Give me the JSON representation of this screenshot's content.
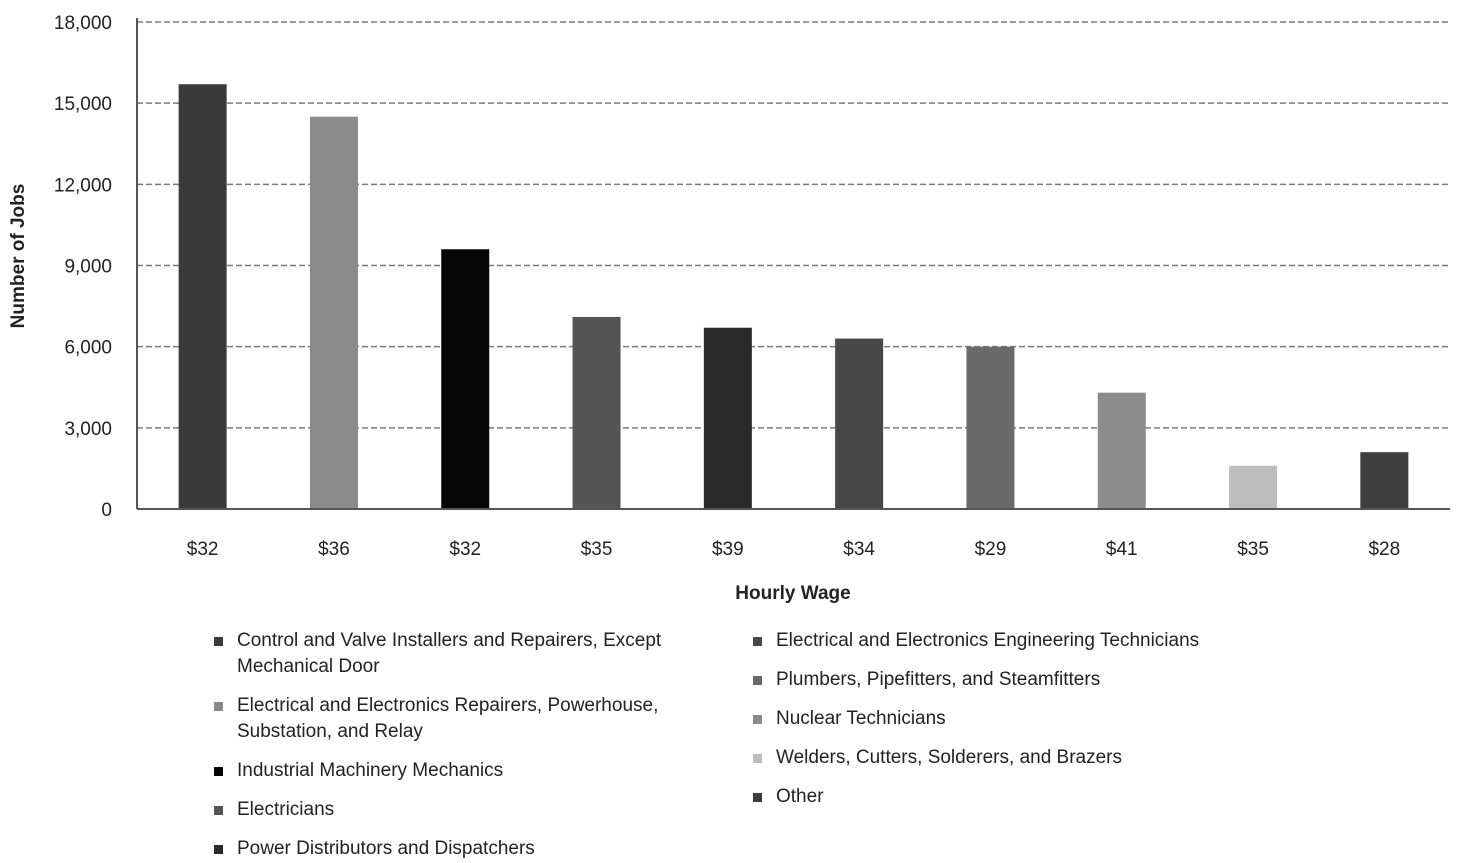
{
  "chart_data": {
    "type": "bar",
    "title": "",
    "xlabel": "Hourly Wage",
    "ylabel": "Number of Jobs",
    "ylim": [
      0,
      18000
    ],
    "yticks": [
      0,
      3000,
      6000,
      9000,
      12000,
      15000,
      18000
    ],
    "ytick_labels": [
      "0",
      "3,000",
      "6,000",
      "9,000",
      "12,000",
      "15,000",
      "18,000"
    ],
    "grid": true,
    "legend_placement": "bottom",
    "categories": [
      "$32",
      "$36",
      "$32",
      "$35",
      "$39",
      "$34",
      "$29",
      "$41",
      "$35",
      "$28"
    ],
    "series": [
      {
        "name": "Control and Valve Installers and Repairers, Except Mechanical Door",
        "value": 15700,
        "color": "#3a3a3a"
      },
      {
        "name": "Electrical and Electronics Repairers, Powerhouse, Substation, and Relay",
        "value": 14500,
        "color": "#8a8a8a"
      },
      {
        "name": "Industrial Machinery Mechanics",
        "value": 9600,
        "color": "#050505"
      },
      {
        "name": "Electricians",
        "value": 7100,
        "color": "#555555"
      },
      {
        "name": "Power Distributors and Dispatchers",
        "value": 6700,
        "color": "#2a2a2a"
      },
      {
        "name": "Electrical and Electronics Engineering Technicians",
        "value": 6300,
        "color": "#474747"
      },
      {
        "name": "Plumbers, Pipefitters, and Steamfitters",
        "value": 6000,
        "color": "#6a6a6a"
      },
      {
        "name": "Nuclear Technicians",
        "value": 4300,
        "color": "#8c8c8c"
      },
      {
        "name": "Welders, Cutters, Solderers, and Brazers",
        "value": 1600,
        "color": "#bdbdbd"
      },
      {
        "name": "Other",
        "value": 2100,
        "color": "#3d3d3d"
      }
    ]
  },
  "legend": {
    "items": [
      {
        "lines": [
          "Control and Valve Installers and Repairers, Except",
          "Mechanical Door"
        ],
        "color": "#3a3a3a"
      },
      {
        "lines": [
          "Electrical and Electronics Repairers, Powerhouse,",
          "Substation, and Relay"
        ],
        "color": "#8a8a8a"
      },
      {
        "lines": [
          "Industrial Machinery Mechanics"
        ],
        "color": "#050505"
      },
      {
        "lines": [
          "Electricians"
        ],
        "color": "#555555"
      },
      {
        "lines": [
          "Power Distributors and Dispatchers"
        ],
        "color": "#2a2a2a"
      },
      {
        "lines": [
          "Electrical and Electronics Engineering Technicians"
        ],
        "color": "#474747"
      },
      {
        "lines": [
          "Plumbers, Pipefitters, and Steamfitters"
        ],
        "color": "#6a6a6a"
      },
      {
        "lines": [
          "Nuclear Technicians"
        ],
        "color": "#8c8c8c"
      },
      {
        "lines": [
          "Welders, Cutters, Solderers, and Brazers"
        ],
        "color": "#bdbdbd"
      },
      {
        "lines": [
          "Other"
        ],
        "color": "#3d3d3d"
      }
    ]
  }
}
